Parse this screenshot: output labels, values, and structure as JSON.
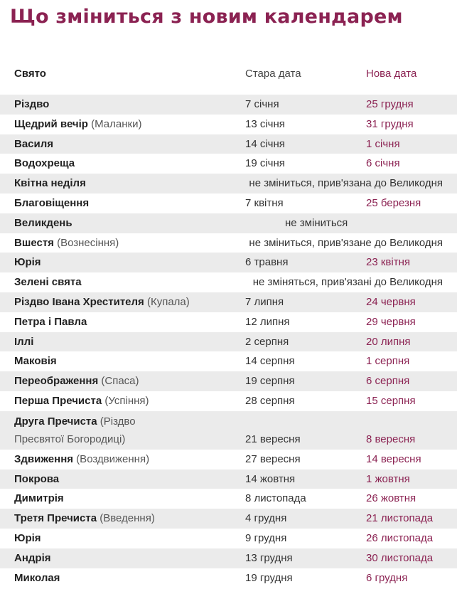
{
  "title": "Що зміниться з новим календарем",
  "columns": {
    "holiday": "Свято",
    "old_date": "Стара дата",
    "new_date": "Нова дата"
  },
  "rows": [
    {
      "name": "Різдво",
      "note": "",
      "old": "7 січня",
      "new": "25 грудня",
      "span": ""
    },
    {
      "name": "Щедрий вечір",
      "note": "(Маланки)",
      "old": "13 січня",
      "new": "31 грудня",
      "span": ""
    },
    {
      "name": "Василя",
      "note": "",
      "old": "14 січня",
      "new": "1 січня",
      "span": ""
    },
    {
      "name": "Водохреща",
      "note": "",
      "old": "19 січня",
      "new": "6 січня",
      "span": ""
    },
    {
      "name": "Квітна неділя",
      "note": "",
      "old": "",
      "new": "",
      "span": "не зміниться, прив'язана до Великодня"
    },
    {
      "name": "Благовіщення",
      "note": "",
      "old": "7 квітня",
      "new": "25 березня",
      "span": ""
    },
    {
      "name": "Великдень",
      "note": "",
      "old": "",
      "new": "",
      "span": "не зміниться",
      "span_center": true
    },
    {
      "name": "Вшестя",
      "note": "(Вознесіння)",
      "old": "",
      "new": "",
      "span": "не зміниться, прив'язане до Великодня"
    },
    {
      "name": "Юрія",
      "note": "",
      "old": "6 травня",
      "new": "23 квітня",
      "span": ""
    },
    {
      "name": "Зелені свята",
      "note": "",
      "old": "",
      "new": "",
      "span": "не зміняться, прив'язані до Великодня"
    },
    {
      "name": "Різдво Івана Хрестителя",
      "note": "(Купала)",
      "old": "7 липня",
      "new": "24 червня",
      "span": ""
    },
    {
      "name": "Петра і Павла",
      "note": "",
      "old": "12 липня",
      "new": "29 червня",
      "span": ""
    },
    {
      "name": "Іллі",
      "note": "",
      "old": "2 серпня",
      "new": "20 липня",
      "span": ""
    },
    {
      "name": "Маковія",
      "note": "",
      "old": "14 серпня",
      "new": "1 серпня",
      "span": ""
    },
    {
      "name": "Переображення",
      "note": "(Спаса)",
      "old": "19 серпня",
      "new": "6 серпня",
      "span": ""
    },
    {
      "name": "Перша Пречиста",
      "note": "(Успіння)",
      "old": "28 серпня",
      "new": "15 серпня",
      "span": ""
    },
    {
      "name": "Друга Пречиста",
      "note": "(Різдво Пресвятої Богородиці)",
      "old": "21 вересня",
      "new": "8 вересня",
      "span": "",
      "tall": true
    },
    {
      "name": "Здвиження",
      "note": "(Воздвиження)",
      "old": "27 вересня",
      "new": "14 вересня",
      "span": ""
    },
    {
      "name": "Покрова",
      "note": "",
      "old": "14 жовтня",
      "new": "1 жовтня",
      "span": ""
    },
    {
      "name": "Димитрія",
      "note": "",
      "old": "8 листопада",
      "new": "26 жовтня",
      "span": ""
    },
    {
      "name": "Третя Пречиста",
      "note": "(Введення)",
      "old": "4 грудня",
      "new": "21 листопада",
      "span": ""
    },
    {
      "name": "Юрія",
      "note": "",
      "old": "9 грудня",
      "new": "26 листопада",
      "span": ""
    },
    {
      "name": "Андрія",
      "note": "",
      "old": "13 грудня",
      "new": "30 листопада",
      "span": ""
    },
    {
      "name": "Миколая",
      "note": "",
      "old": "19 грудня",
      "new": "6 грудня",
      "span": ""
    }
  ]
}
